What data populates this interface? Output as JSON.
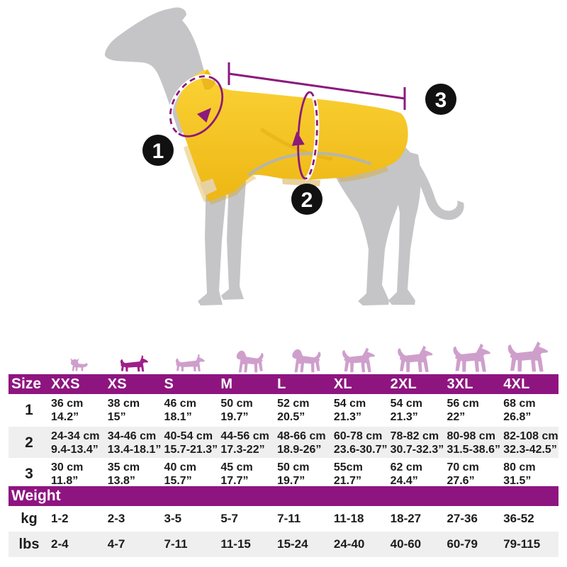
{
  "theme": {
    "accent_purple": "#8e1580",
    "row_alt_gray": "#efefef",
    "text_black": "#1c1c1c",
    "header_text_white": "#ffffff",
    "coat_yellow": "#f2bf1d",
    "dog_gray": "#c5c5c7",
    "illustration_purple": "#8c1a7c",
    "marker_black": "#111111",
    "icon_pink": "#cf9fcc",
    "icon_highlight_magenta": "#9e1f8a",
    "reflective_stripe_gray": "#b5b5ab",
    "strap_tan": "#e7d1a1"
  },
  "illustration": {
    "markers": [
      "1",
      "2",
      "3"
    ]
  },
  "size_chart": {
    "header_label": "Size",
    "sizes": [
      "XXS",
      "XS",
      "S",
      "M",
      "L",
      "XL",
      "2XL",
      "3XL",
      "4XL"
    ],
    "icons": [
      {
        "icon": "chihuahua-icon",
        "highlighted": false
      },
      {
        "icon": "dachshund-icon",
        "highlighted": true
      },
      {
        "icon": "dachshund-icon",
        "highlighted": false
      },
      {
        "icon": "bull-terrier-icon",
        "highlighted": false
      },
      {
        "icon": "bull-terrier-icon",
        "highlighted": false
      },
      {
        "icon": "pit-bull-icon",
        "highlighted": false
      },
      {
        "icon": "german-shepherd-icon",
        "highlighted": false
      },
      {
        "icon": "doberman-icon",
        "highlighted": false
      },
      {
        "icon": "great-dane-icon",
        "highlighted": false
      }
    ],
    "measurement_rows": [
      {
        "label": "1",
        "values": [
          {
            "cm": "36 cm",
            "in": "14.2”"
          },
          {
            "cm": "38 cm",
            "in": "15”"
          },
          {
            "cm": "46 cm",
            "in": "18.1”"
          },
          {
            "cm": "50 cm",
            "in": "19.7”"
          },
          {
            "cm": "52 cm",
            "in": "20.5”"
          },
          {
            "cm": "54 cm",
            "in": "21.3”"
          },
          {
            "cm": "54 cm",
            "in": "21.3”"
          },
          {
            "cm": "56 cm",
            "in": "22”"
          },
          {
            "cm": "68 cm",
            "in": "26.8”"
          }
        ]
      },
      {
        "label": "2",
        "values": [
          {
            "cm": "24-34 cm",
            "in": "9.4-13.4”"
          },
          {
            "cm": "34-46 cm",
            "in": "13.4-18.1”"
          },
          {
            "cm": "40-54 cm",
            "in": "15.7-21.3”"
          },
          {
            "cm": "44-56 cm",
            "in": "17.3-22”"
          },
          {
            "cm": "48-66 cm",
            "in": "18.9-26”"
          },
          {
            "cm": "60-78 cm",
            "in": "23.6-30.7”"
          },
          {
            "cm": "78-82 cm",
            "in": "30.7-32.3”"
          },
          {
            "cm": "80-98 cm",
            "in": "31.5-38.6”"
          },
          {
            "cm": "82-108 cm",
            "in": "32.3-42.5”"
          }
        ]
      },
      {
        "label": "3",
        "values": [
          {
            "cm": "30 cm",
            "in": "11.8”"
          },
          {
            "cm": "35 cm",
            "in": "13.8”"
          },
          {
            "cm": "40 cm",
            "in": "15.7”"
          },
          {
            "cm": "45 cm",
            "in": "17.7”"
          },
          {
            "cm": "50 cm",
            "in": "19.7”"
          },
          {
            "cm": "55cm",
            "in": "21.7”"
          },
          {
            "cm": "62 cm",
            "in": "24.4”"
          },
          {
            "cm": "70 cm",
            "in": "27.6”"
          },
          {
            "cm": "80 cm",
            "in": "31.5”"
          }
        ]
      }
    ],
    "weight_label": "Weight",
    "weight_rows": [
      {
        "label": "kg",
        "values": [
          "1-2",
          "2-3",
          "3-5",
          "5-7",
          "7-11",
          "11-18",
          "18-27",
          "27-36",
          "36-52"
        ]
      },
      {
        "label": "lbs",
        "values": [
          "2-4",
          "4-7",
          "7-11",
          "11-15",
          "15-24",
          "24-40",
          "40-60",
          "60-79",
          "79-115"
        ]
      }
    ]
  }
}
